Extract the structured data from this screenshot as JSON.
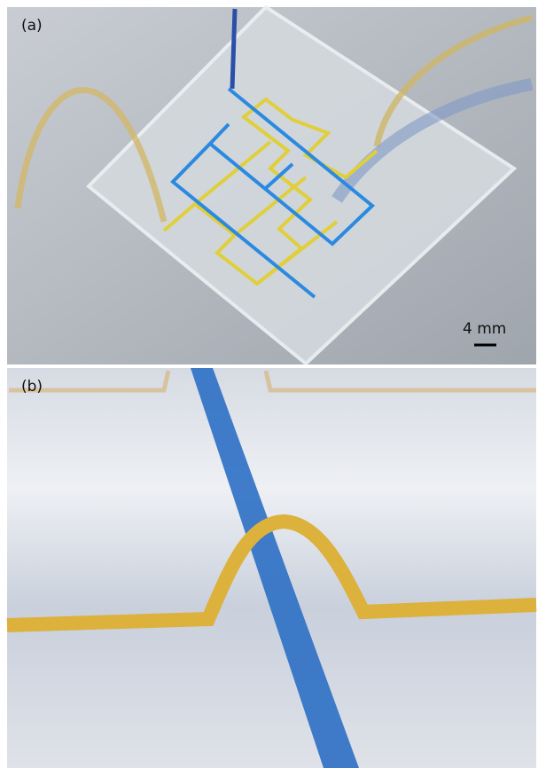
{
  "panels": [
    {
      "label": "(a)",
      "scale_bar": "4 mm"
    },
    {
      "label": "(b)"
    }
  ]
}
